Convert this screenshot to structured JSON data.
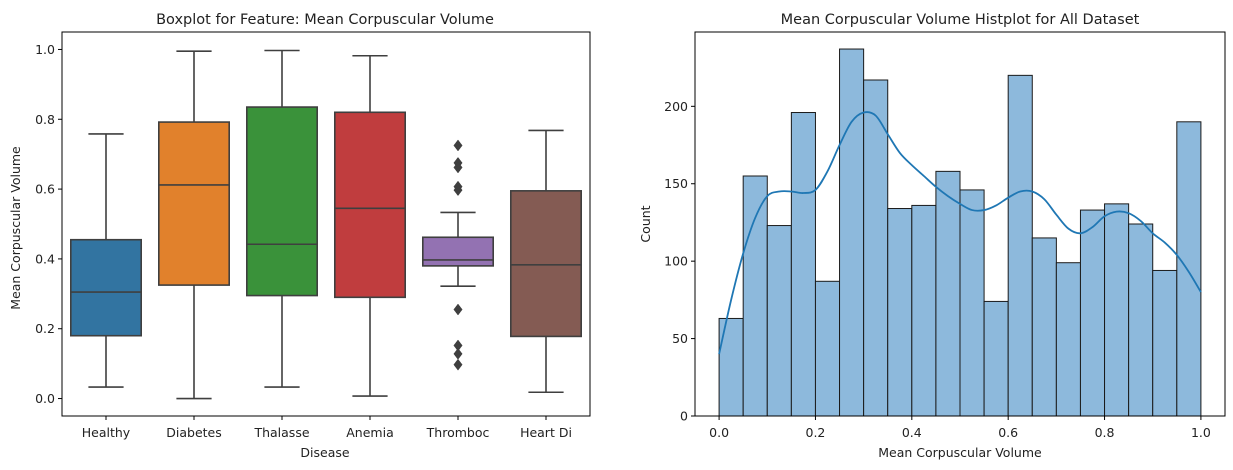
{
  "chart_data": [
    {
      "type": "box",
      "title": "Boxplot for Feature: Mean Corpuscular Volume",
      "xlabel": "Disease",
      "ylabel": "Mean Corpuscular Volume",
      "ylim": [
        -0.05,
        1.05
      ],
      "yticks": [
        "0.0",
        "0.2",
        "0.4",
        "0.6",
        "0.8",
        "1.0"
      ],
      "grid": false,
      "categories": [
        "Healthy",
        "Diabetes",
        "Thalasse",
        "Anemia",
        "Thromboc",
        "Heart Di"
      ],
      "boxes": [
        {
          "category": "Healthy",
          "whisker_low": 0.033,
          "q1": 0.18,
          "median": 0.305,
          "q3": 0.455,
          "whisker_high": 0.758,
          "outliers": [],
          "color": "#3274a1"
        },
        {
          "category": "Diabetes",
          "whisker_low": 0.0,
          "q1": 0.325,
          "median": 0.612,
          "q3": 0.792,
          "whisker_high": 0.995,
          "outliers": [],
          "color": "#e1812c"
        },
        {
          "category": "Thalasse",
          "whisker_low": 0.033,
          "q1": 0.295,
          "median": 0.442,
          "q3": 0.835,
          "whisker_high": 0.997,
          "outliers": [],
          "color": "#3a923a"
        },
        {
          "category": "Anemia",
          "whisker_low": 0.007,
          "q1": 0.29,
          "median": 0.545,
          "q3": 0.82,
          "whisker_high": 0.982,
          "outliers": [],
          "color": "#c03d3e"
        },
        {
          "category": "Thromboc",
          "whisker_low": 0.322,
          "q1": 0.38,
          "median": 0.397,
          "q3": 0.462,
          "whisker_high": 0.533,
          "outliers": [
            0.725,
            0.675,
            0.662,
            0.607,
            0.597,
            0.255,
            0.152,
            0.128,
            0.097
          ],
          "color": "#9372b2"
        },
        {
          "category": "Heart Di",
          "whisker_low": 0.018,
          "q1": 0.178,
          "median": 0.383,
          "q3": 0.595,
          "whisker_high": 0.768,
          "outliers": [],
          "color": "#845b53"
        }
      ]
    },
    {
      "type": "histogram",
      "title": "Mean Corpuscular Volume Histplot for All Dataset",
      "xlabel": "Mean Corpuscular Volume",
      "ylabel": "Count",
      "xlim": [
        -0.05,
        1.05
      ],
      "ylim": [
        0,
        248
      ],
      "xticks": [
        "0.0",
        "0.2",
        "0.4",
        "0.6",
        "0.8",
        "1.0"
      ],
      "yticks": [
        "0",
        "50",
        "100",
        "150",
        "200"
      ],
      "grid": false,
      "bin_edges": [
        0.0,
        0.05,
        0.1,
        0.15,
        0.2,
        0.25,
        0.3,
        0.35,
        0.4,
        0.45,
        0.5,
        0.55,
        0.6,
        0.65,
        0.7,
        0.75,
        0.8,
        0.85,
        0.9,
        0.95,
        1.0
      ],
      "counts": [
        63,
        155,
        123,
        196,
        87,
        237,
        217,
        134,
        136,
        158,
        146,
        74,
        220,
        115,
        99,
        133,
        137,
        124,
        94,
        190
      ],
      "bar_color": "#8db9dc",
      "kde": {
        "color": "#1f77b4",
        "x": [
          0.0,
          0.025,
          0.05,
          0.075,
          0.1,
          0.125,
          0.15,
          0.175,
          0.2,
          0.225,
          0.25,
          0.275,
          0.3,
          0.325,
          0.35,
          0.375,
          0.4,
          0.425,
          0.45,
          0.475,
          0.5,
          0.525,
          0.55,
          0.575,
          0.6,
          0.625,
          0.65,
          0.675,
          0.7,
          0.725,
          0.75,
          0.775,
          0.8,
          0.825,
          0.85,
          0.875,
          0.9,
          0.925,
          0.95,
          0.975,
          1.0
        ],
        "y": [
          40,
          75,
          105,
          128,
          142,
          145,
          145,
          144,
          146,
          158,
          175,
          190,
          196,
          194,
          182,
          170,
          162,
          155,
          148,
          142,
          137,
          133,
          133,
          136,
          141,
          145,
          145,
          140,
          130,
          121,
          118,
          122,
          129,
          132,
          131,
          126,
          118,
          112,
          104,
          93,
          80
        ]
      }
    }
  ]
}
